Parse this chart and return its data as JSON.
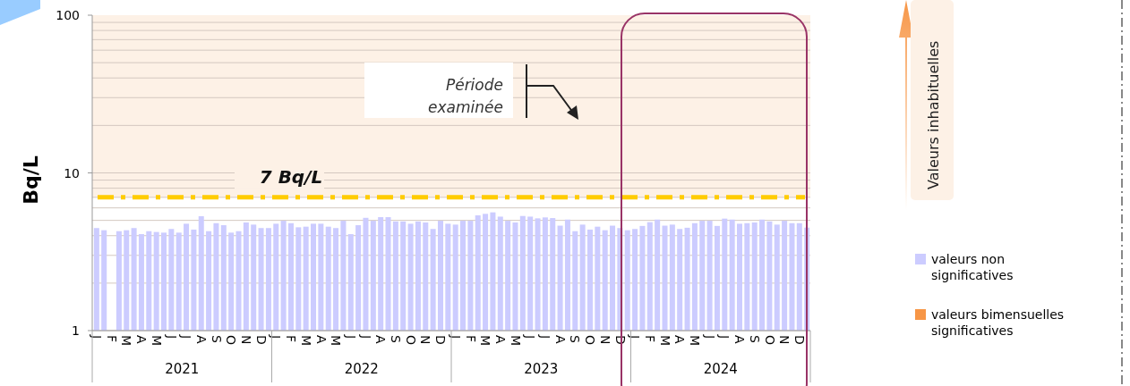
{
  "chart_data": {
    "type": "bar",
    "ylabel": "Bq/L",
    "log": true,
    "ylim": [
      1,
      100
    ],
    "yticks": [
      1,
      10,
      100
    ],
    "grid": "y",
    "legend": "right",
    "categories": [
      "J",
      null,
      "F",
      null,
      "M",
      null,
      "A",
      null,
      "M",
      null,
      "J",
      null,
      "J",
      null,
      "A",
      null,
      "S",
      null,
      "O",
      null,
      "N",
      null,
      "D",
      null,
      "J",
      null,
      "F",
      null,
      "M",
      null,
      "A",
      null,
      "M",
      null,
      "J",
      null,
      "J",
      null,
      "A",
      null,
      "S",
      null,
      "O",
      null,
      "N",
      null,
      "D",
      null,
      "J",
      null,
      "F",
      null,
      "M",
      null,
      "A",
      null,
      "M",
      null,
      "J",
      null,
      "J",
      null,
      "A",
      null,
      "S",
      null,
      "O",
      null,
      "N",
      null,
      "D",
      null,
      "J",
      null,
      "F",
      null,
      "M",
      null,
      "A",
      null,
      "M",
      null,
      "J",
      null,
      "J",
      null,
      "A",
      null,
      "S",
      null,
      "O",
      null,
      "N",
      null,
      "D",
      null
    ],
    "series": [
      {
        "name": "valeurs non significatives",
        "color": "#ccccff",
        "values": [
          4.47,
          4.33,
          null,
          4.27,
          4.33,
          4.47,
          4.09,
          4.27,
          4.22,
          4.18,
          4.41,
          4.18,
          4.76,
          4.37,
          5.31,
          4.27,
          4.8,
          4.66,
          4.18,
          4.27,
          4.85,
          4.7,
          4.47,
          4.47,
          4.76,
          4.97,
          4.8,
          4.52,
          4.56,
          4.76,
          4.76,
          4.56,
          4.47,
          4.97,
          4.09,
          4.66,
          5.19,
          4.97,
          5.24,
          5.24,
          4.92,
          4.92,
          4.76,
          4.92,
          4.85,
          4.41,
          4.97,
          4.76,
          4.7,
          4.97,
          4.97,
          5.38,
          5.5,
          5.62,
          5.28,
          4.97,
          4.85,
          5.33,
          5.28,
          5.15,
          5.22,
          5.17,
          4.63,
          5.06,
          4.27,
          4.7,
          4.37,
          4.56,
          4.33,
          4.63,
          4.47,
          4.33,
          4.41,
          4.61,
          4.87,
          5.06,
          4.63,
          4.7,
          4.41,
          4.49,
          4.8,
          4.97,
          4.97,
          4.61,
          5.13,
          5.06,
          4.76,
          4.8,
          4.85,
          5.06,
          4.92,
          4.7,
          4.97,
          4.8,
          4.8,
          4.5
        ]
      },
      {
        "name": "valeurs bimensuelles significatives",
        "color": "#f79646",
        "values": [
          null,
          null,
          null,
          null,
          null,
          null,
          null,
          null,
          null,
          null,
          null,
          null,
          null,
          null,
          null,
          null,
          null,
          null,
          null,
          null,
          null,
          null,
          null,
          null,
          null,
          null,
          null,
          null,
          null,
          null,
          null,
          null,
          null,
          null,
          null,
          null,
          null,
          null,
          null,
          null,
          null,
          null,
          null,
          null,
          null,
          null,
          null,
          null,
          null,
          null,
          null,
          null,
          null,
          null,
          null,
          null,
          null,
          null,
          null,
          null,
          null,
          null,
          null,
          null,
          null,
          null,
          null,
          null,
          null,
          null,
          null,
          null,
          null,
          null,
          null,
          null,
          null,
          null,
          null,
          null,
          null,
          null,
          null,
          null,
          null,
          null,
          null,
          null,
          null,
          null,
          null,
          null,
          null,
          null,
          null,
          null
        ]
      }
    ],
    "ref_lines": [
      {
        "axis": "y",
        "value": 7,
        "label": "7 Bq/L",
        "color": "#ffcc00",
        "line_style": "dashed"
      }
    ],
    "bands": [
      {
        "axis": "y",
        "from": 7,
        "to": 100,
        "color": "#fdf1e6"
      }
    ],
    "annotations": [
      "2021",
      "2022",
      "2023",
      "2024",
      "Période examinée",
      "Valeurs inhabituelles"
    ]
  }
}
